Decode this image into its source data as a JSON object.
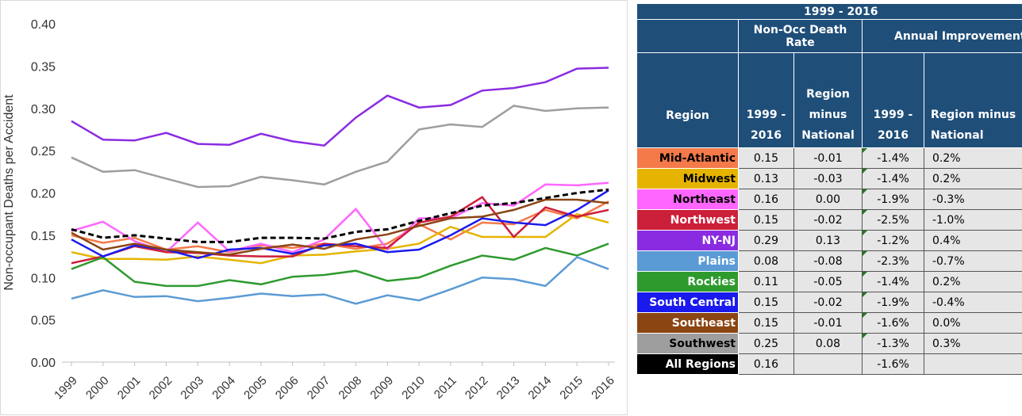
{
  "chart_data": {
    "type": "line",
    "y_label": "Non-occupant Deaths per Accident",
    "categories": [
      "1999",
      "2000",
      "2001",
      "2002",
      "2003",
      "2004",
      "2005",
      "2006",
      "2007",
      "2008",
      "2009",
      "2010",
      "2011",
      "2012",
      "2013",
      "2014",
      "2015",
      "2016"
    ],
    "ylim": [
      0,
      0.4
    ],
    "yticks": [
      {
        "value": 0,
        "label": "0.00"
      },
      {
        "value": 0.05,
        "label": "0.05"
      },
      {
        "value": 0.1,
        "label": "0.10"
      },
      {
        "value": 0.15,
        "label": "0.15"
      },
      {
        "value": 0.2,
        "label": "0.20"
      },
      {
        "value": 0.25,
        "label": "0.25"
      },
      {
        "value": 0.3,
        "label": "0.30"
      },
      {
        "value": 0.35,
        "label": "0.35"
      },
      {
        "value": 0.4,
        "label": "0.40"
      }
    ],
    "grid": false,
    "series": [
      {
        "name": "Mid-Atlantic",
        "color": "#f47a4a",
        "values": [
          0.15,
          0.141,
          0.147,
          0.133,
          0.137,
          0.13,
          0.138,
          0.135,
          0.14,
          0.134,
          0.14,
          0.163,
          0.145,
          0.165,
          0.163,
          0.18,
          0.17,
          0.19
        ]
      },
      {
        "name": "Midwest",
        "color": "#e6b400",
        "values": [
          0.13,
          0.122,
          0.122,
          0.121,
          0.125,
          0.121,
          0.117,
          0.126,
          0.127,
          0.131,
          0.134,
          0.14,
          0.16,
          0.148,
          0.148,
          0.148,
          0.175,
          0.165
        ]
      },
      {
        "name": "Northeast",
        "color": "#ff66ff",
        "values": [
          0.155,
          0.166,
          0.143,
          0.13,
          0.165,
          0.131,
          0.14,
          0.13,
          0.145,
          0.181,
          0.133,
          0.17,
          0.17,
          0.188,
          0.185,
          0.21,
          0.209,
          0.212
        ]
      },
      {
        "name": "Northwest",
        "color": "#cc1f3a",
        "values": [
          0.117,
          0.125,
          0.137,
          0.13,
          0.129,
          0.126,
          0.125,
          0.125,
          0.14,
          0.137,
          0.135,
          0.165,
          0.172,
          0.195,
          0.148,
          0.183,
          0.172,
          0.18
        ]
      },
      {
        "name": "NY-NJ",
        "color": "#8a2be2",
        "values": [
          0.285,
          0.263,
          0.262,
          0.271,
          0.258,
          0.257,
          0.27,
          0.261,
          0.256,
          0.289,
          0.315,
          0.301,
          0.304,
          0.321,
          0.324,
          0.331,
          0.347,
          0.348
        ]
      },
      {
        "name": "Plains",
        "color": "#5b9bd5",
        "values": [
          0.075,
          0.085,
          0.077,
          0.078,
          0.072,
          0.076,
          0.081,
          0.078,
          0.08,
          0.069,
          0.079,
          0.073,
          0.086,
          0.1,
          0.098,
          0.09,
          0.124,
          0.11
        ]
      },
      {
        "name": "Rockies",
        "color": "#2e9a2e",
        "values": [
          0.11,
          0.124,
          0.095,
          0.09,
          0.09,
          0.097,
          0.092,
          0.101,
          0.103,
          0.108,
          0.096,
          0.1,
          0.114,
          0.126,
          0.121,
          0.135,
          0.126,
          0.14
        ]
      },
      {
        "name": "South Central",
        "color": "#1a1aee",
        "values": [
          0.145,
          0.125,
          0.138,
          0.133,
          0.123,
          0.133,
          0.135,
          0.128,
          0.138,
          0.14,
          0.13,
          0.133,
          0.15,
          0.17,
          0.165,
          0.162,
          0.18,
          0.203
        ]
      },
      {
        "name": "Southeast",
        "color": "#8b4513",
        "values": [
          0.153,
          0.133,
          0.14,
          0.133,
          0.13,
          0.127,
          0.134,
          0.139,
          0.134,
          0.145,
          0.151,
          0.161,
          0.17,
          0.172,
          0.18,
          0.192,
          0.192,
          0.188
        ]
      },
      {
        "name": "Southwest",
        "color": "#9e9e9e",
        "values": [
          0.242,
          0.225,
          0.227,
          0.217,
          0.207,
          0.208,
          0.219,
          0.215,
          0.21,
          0.225,
          0.237,
          0.275,
          0.281,
          0.278,
          0.303,
          0.297,
          0.3,
          0.301
        ]
      },
      {
        "name": "All Regions",
        "color": "#000000",
        "dash": true,
        "values": [
          0.157,
          0.147,
          0.15,
          0.146,
          0.142,
          0.142,
          0.147,
          0.147,
          0.146,
          0.154,
          0.157,
          0.167,
          0.176,
          0.185,
          0.188,
          0.194,
          0.2,
          0.204
        ]
      }
    ]
  },
  "table": {
    "title": "1999 - 2016",
    "groups": [
      "Non-Occ Death Rate",
      "Annual Improvement"
    ],
    "subheaders": [
      "Region",
      "1999 - 2016",
      "Region minus National",
      "1999 - 2016",
      "Region minus National"
    ],
    "rows": [
      [
        "Mid-Atlantic",
        "0.15",
        "-0.01",
        "-1.4%",
        "0.2%"
      ],
      [
        "Midwest",
        "0.13",
        "-0.03",
        "-1.4%",
        "0.2%"
      ],
      [
        "Northeast",
        "0.16",
        "0.00",
        "-1.9%",
        "-0.3%"
      ],
      [
        "Northwest",
        "0.15",
        "-0.02",
        "-2.5%",
        "-1.0%"
      ],
      [
        "NY-NJ",
        "0.29",
        "0.13",
        "-1.2%",
        "0.4%"
      ],
      [
        "Plains",
        "0.08",
        "-0.08",
        "-2.3%",
        "-0.7%"
      ],
      [
        "Rockies",
        "0.11",
        "-0.05",
        "-1.4%",
        "0.2%"
      ],
      [
        "South Central",
        "0.15",
        "-0.02",
        "-1.9%",
        "-0.4%"
      ],
      [
        "Southeast",
        "0.15",
        "-0.01",
        "-1.6%",
        "0.0%"
      ],
      [
        "Southwest",
        "0.25",
        "0.08",
        "-1.3%",
        "0.3%"
      ],
      [
        "All Regions",
        "0.16",
        null,
        "-1.6%",
        null
      ]
    ]
  }
}
